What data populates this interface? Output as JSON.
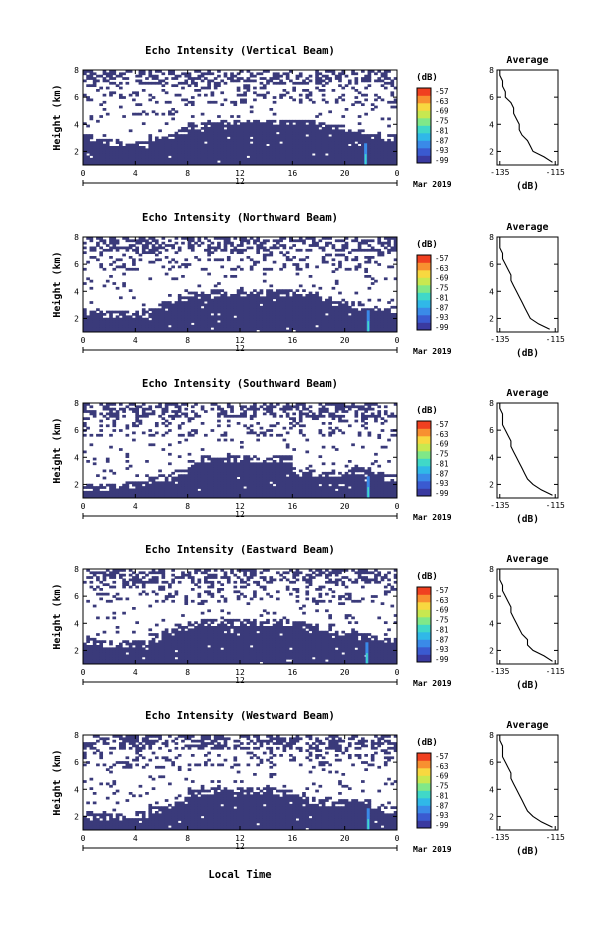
{
  "figure": {
    "xlabel": "Local Time",
    "date_label": "Mar 2019"
  },
  "colors": {
    "background_echo": "#3a3a7a",
    "line": "#000000"
  },
  "colorbar": {
    "unit": "(dB)",
    "tick_labels": [
      "-57",
      "-63",
      "-69",
      "-75",
      "-81",
      "-87",
      "-93",
      "-99"
    ],
    "colors": [
      "#3a3aa0",
      "#3a5ad0",
      "#3a8ae8",
      "#30b8e8",
      "#40d8c8",
      "#80e888",
      "#c8e850",
      "#f8d840",
      "#f89030",
      "#f04020"
    ]
  },
  "chart_data": [
    {
      "type": "heatmap",
      "title": "Echo Intensity (Vertical Beam)",
      "ylabel": "Height (km)",
      "x_ticks": [
        "0",
        "4",
        "8",
        "12",
        "16",
        "20",
        "0"
      ],
      "y_ticks": [
        "8",
        "6",
        "4",
        "2"
      ],
      "xlim": [
        0,
        24
      ],
      "ylim": [
        1,
        8
      ],
      "day_label": "12",
      "solid_top_km": [
        3.0,
        2.7,
        2.6,
        2.5,
        2.5,
        2.9,
        3.2,
        3.5,
        3.9,
        4.0,
        4.1,
        4.1,
        4.1,
        4.1,
        4.1,
        4.1,
        4.1,
        4.0,
        3.8,
        3.6,
        3.4,
        3.3,
        3.1,
        3.0
      ],
      "spike_hour": 21.6,
      "average": {
        "title": "Average",
        "xlabel": "(dB)",
        "x_ticks": [
          "-135",
          "-115"
        ],
        "y_ticks": [
          "8",
          "6",
          "4",
          "2"
        ],
        "xlim": [
          -136,
          -114
        ],
        "ylim": [
          1,
          8
        ],
        "heights": [
          1.2,
          1.6,
          2.0,
          2.4,
          2.8,
          3.2,
          3.6,
          4.0,
          4.4,
          4.8,
          5.2,
          5.6,
          6.0,
          6.4,
          6.8,
          7.2,
          7.6,
          8.0
        ],
        "values": [
          -116,
          -119,
          -123,
          -124,
          -125,
          -127,
          -128,
          -128,
          -129,
          -130,
          -130,
          -131,
          -133,
          -133,
          -134,
          -134,
          -135,
          -135
        ]
      }
    },
    {
      "type": "heatmap",
      "title": "Echo Intensity (Northward Beam)",
      "ylabel": "Height (km)",
      "x_ticks": [
        "0",
        "4",
        "8",
        "12",
        "16",
        "20",
        "0"
      ],
      "y_ticks": [
        "8",
        "6",
        "4",
        "2"
      ],
      "xlim": [
        0,
        24
      ],
      "ylim": [
        1,
        8
      ],
      "day_label": "12",
      "solid_top_km": [
        2.4,
        2.3,
        2.2,
        2.2,
        2.2,
        2.5,
        2.9,
        3.3,
        3.6,
        3.8,
        3.8,
        3.8,
        3.8,
        3.8,
        3.8,
        3.8,
        3.8,
        3.7,
        3.4,
        3.1,
        2.9,
        2.8,
        2.7,
        2.6
      ],
      "spike_hour": 21.8,
      "average": {
        "title": "Average",
        "xlabel": "(dB)",
        "x_ticks": [
          "-135",
          "-115"
        ],
        "y_ticks": [
          "8",
          "6",
          "4",
          "2"
        ],
        "xlim": [
          -136,
          -114
        ],
        "ylim": [
          1,
          8
        ],
        "heights": [
          1.2,
          1.6,
          2.0,
          2.4,
          2.8,
          3.2,
          3.6,
          4.0,
          4.4,
          4.8,
          5.2,
          5.6,
          6.0,
          6.4,
          6.8,
          7.2,
          7.6,
          8.0
        ],
        "values": [
          -117,
          -121,
          -124,
          -125,
          -126,
          -127,
          -128,
          -129,
          -130,
          -131,
          -131,
          -132,
          -133,
          -134,
          -134,
          -135,
          -135,
          -135
        ]
      }
    },
    {
      "type": "heatmap",
      "title": "Echo Intensity (Southward Beam)",
      "ylabel": "Height (km)",
      "x_ticks": [
        "0",
        "4",
        "8",
        "12",
        "16",
        "20",
        "0"
      ],
      "y_ticks": [
        "8",
        "6",
        "4",
        "2"
      ],
      "xlim": [
        0,
        24
      ],
      "ylim": [
        1,
        8
      ],
      "day_label": "12",
      "solid_top_km": [
        1.8,
        1.8,
        1.8,
        1.9,
        2.0,
        2.2,
        2.5,
        2.8,
        3.5,
        3.8,
        3.8,
        3.8,
        3.8,
        3.8,
        3.8,
        3.8,
        3.0,
        2.8,
        2.7,
        2.8,
        2.9,
        3.0,
        2.7,
        2.4
      ],
      "spike_hour": 21.8,
      "average": {
        "title": "Average",
        "xlabel": "(dB)",
        "x_ticks": [
          "-135",
          "-115"
        ],
        "y_ticks": [
          "8",
          "6",
          "4",
          "2"
        ],
        "xlim": [
          -136,
          -114
        ],
        "ylim": [
          1,
          8
        ],
        "heights": [
          1.2,
          1.6,
          2.0,
          2.4,
          2.8,
          3.2,
          3.6,
          4.0,
          4.4,
          4.8,
          5.2,
          5.6,
          6.0,
          6.4,
          6.8,
          7.2,
          7.6,
          8.0
        ],
        "values": [
          -116,
          -120,
          -123,
          -125,
          -126,
          -127,
          -128,
          -129,
          -130,
          -131,
          -131,
          -132,
          -133,
          -134,
          -134,
          -134,
          -135,
          -135
        ]
      }
    },
    {
      "type": "heatmap",
      "title": "Echo Intensity (Eastward Beam)",
      "ylabel": "Height (km)",
      "x_ticks": [
        "0",
        "4",
        "8",
        "12",
        "16",
        "20",
        "0"
      ],
      "y_ticks": [
        "8",
        "6",
        "4",
        "2"
      ],
      "xlim": [
        0,
        24
      ],
      "ylim": [
        1,
        8
      ],
      "day_label": "12",
      "solid_top_km": [
        2.6,
        2.5,
        2.4,
        2.4,
        2.5,
        2.9,
        3.3,
        3.7,
        3.9,
        4.0,
        4.0,
        4.0,
        4.0,
        4.0,
        4.0,
        4.0,
        3.9,
        3.6,
        3.3,
        3.2,
        3.1,
        3.0,
        2.8,
        2.7
      ],
      "spike_hour": 21.7,
      "average": {
        "title": "Average",
        "xlabel": "(dB)",
        "x_ticks": [
          "-135",
          "-115"
        ],
        "y_ticks": [
          "8",
          "6",
          "4",
          "2"
        ],
        "xlim": [
          -136,
          -114
        ],
        "ylim": [
          1,
          8
        ],
        "heights": [
          1.2,
          1.6,
          2.0,
          2.4,
          2.8,
          3.2,
          3.6,
          4.0,
          4.4,
          4.8,
          5.2,
          5.6,
          6.0,
          6.4,
          6.8,
          7.2,
          7.6,
          8.0
        ],
        "values": [
          -116,
          -119,
          -123,
          -125,
          -125,
          -127,
          -128,
          -129,
          -130,
          -131,
          -131,
          -132,
          -133,
          -134,
          -134,
          -135,
          -135,
          -135
        ]
      }
    },
    {
      "type": "heatmap",
      "title": "Echo Intensity (Westward Beam)",
      "ylabel": "Height (km)",
      "x_ticks": [
        "0",
        "4",
        "8",
        "12",
        "16",
        "20",
        "0"
      ],
      "y_ticks": [
        "8",
        "6",
        "4",
        "2"
      ],
      "xlim": [
        0,
        24
      ],
      "ylim": [
        1,
        8
      ],
      "day_label": "12",
      "solid_top_km": [
        1.9,
        1.9,
        1.9,
        2.0,
        2.1,
        2.4,
        2.7,
        3.1,
        3.6,
        3.8,
        3.8,
        3.8,
        3.8,
        3.8,
        3.8,
        3.7,
        3.4,
        3.1,
        2.9,
        2.9,
        3.0,
        3.0,
        2.7,
        2.4
      ],
      "spike_hour": 21.8,
      "average": {
        "title": "Average",
        "xlabel": "(dB)",
        "x_ticks": [
          "-135",
          "-115"
        ],
        "y_ticks": [
          "8",
          "6",
          "4",
          "2"
        ],
        "xlim": [
          -136,
          -114
        ],
        "ylim": [
          1,
          8
        ],
        "heights": [
          1.2,
          1.6,
          2.0,
          2.4,
          2.8,
          3.2,
          3.6,
          4.0,
          4.4,
          4.8,
          5.2,
          5.6,
          6.0,
          6.4,
          6.8,
          7.2,
          7.6,
          8.0
        ],
        "values": [
          -116,
          -120,
          -123,
          -125,
          -126,
          -127,
          -128,
          -129,
          -130,
          -131,
          -131,
          -132,
          -133,
          -134,
          -134,
          -134,
          -135,
          -135
        ]
      }
    }
  ]
}
